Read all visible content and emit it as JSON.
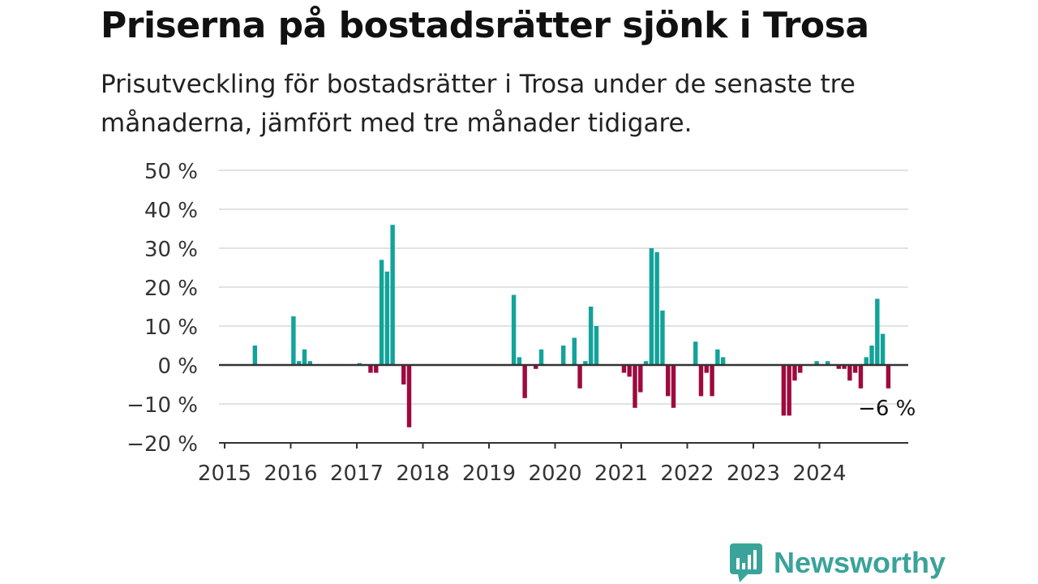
{
  "title": "Priserna på bostadsrätter sjönk i Trosa",
  "subtitle": "Prisutveckling för bostadsrätter i Trosa under de senaste tre månaderna, jämfört med tre månader tidigare.",
  "brand": {
    "name": "Newsworthy",
    "icon": "bar-chart-speech-bubble-icon",
    "color": "#3aa39a"
  },
  "colors": {
    "positive": "#12a39a",
    "negative": "#9e0a3e",
    "grid": "#d9d9d9",
    "axis": "#333333"
  },
  "chart_data": {
    "type": "bar",
    "title": "Priserna på bostadsrätter sjönk i Trosa",
    "xlabel": "",
    "ylabel": "",
    "ylim": [
      -20,
      50
    ],
    "yticks": [
      50,
      40,
      30,
      20,
      10,
      0,
      -10,
      -20
    ],
    "ytick_labels": [
      "50 %",
      "40 %",
      "30 %",
      "20 %",
      "10 %",
      "0 %",
      "−10 %",
      "−20 %"
    ],
    "xticks": [
      "2015",
      "2016",
      "2017",
      "2018",
      "2019",
      "2020",
      "2021",
      "2022",
      "2023",
      "2024"
    ],
    "grid": true,
    "start": "2015-01",
    "series": [
      {
        "values": [
          null,
          null,
          null,
          null,
          null,
          5,
          null,
          null,
          null,
          null,
          null,
          null,
          12.5,
          1,
          4,
          1,
          null,
          null,
          null,
          null,
          null,
          null,
          null,
          null,
          0.5,
          null,
          -2,
          -2,
          27,
          24,
          36,
          null,
          -5,
          -16,
          null,
          null,
          null,
          null,
          null,
          null,
          null,
          null,
          null,
          null,
          null,
          null,
          null,
          null,
          null,
          null,
          null,
          null,
          18,
          2,
          -8.5,
          null,
          -1,
          4,
          null,
          null,
          null,
          5,
          null,
          7,
          -6,
          1,
          15,
          10,
          null,
          null,
          null,
          null,
          -2,
          -3,
          -11,
          -7,
          1,
          30,
          29,
          14,
          -8,
          -11,
          null,
          null,
          null,
          6,
          -8,
          -2,
          -8,
          4,
          2,
          null,
          null,
          null,
          null,
          null,
          null,
          null,
          null,
          null,
          null,
          -13,
          -13,
          -4,
          -2,
          null,
          null,
          1,
          null,
          1,
          null,
          -1,
          -1,
          -4,
          -2,
          -6,
          2,
          5,
          17,
          8,
          -6
        ]
      }
    ],
    "annotation": {
      "label": "−6 %",
      "value": -6,
      "date": "2025-01"
    }
  }
}
